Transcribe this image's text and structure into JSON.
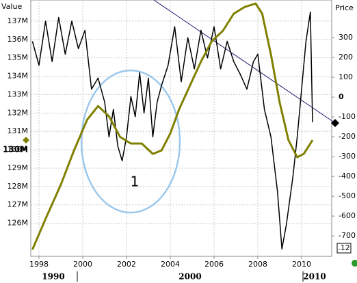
{
  "chart_data": {
    "type": "line",
    "y_axis_label": "Value",
    "y2_axis_label": "Price",
    "xlim": [
      1997.625,
      2011.375
    ],
    "xticks": [
      1998,
      2000,
      2002,
      2004,
      2006,
      2008,
      2010
    ],
    "ylim": [
      124200000,
      138150000
    ],
    "yticks": [
      {
        "value": 126000000,
        "label": "126M"
      },
      {
        "value": 127000000,
        "label": "127M"
      },
      {
        "value": 128000000,
        "label": "128M"
      },
      {
        "value": 129000000,
        "label": "129M"
      },
      {
        "value": 130000000,
        "label": "130M"
      },
      {
        "value": 131000000,
        "label": "131M"
      },
      {
        "value": 132000000,
        "label": "132M"
      },
      {
        "value": 133000000,
        "label": "133M"
      },
      {
        "value": 134000000,
        "label": "134M"
      },
      {
        "value": 135000000,
        "label": "135M"
      },
      {
        "value": 136000000,
        "label": "136M"
      },
      {
        "value": 137000000,
        "label": "137M"
      }
    ],
    "y2lim": [
      -803,
      490
    ],
    "y2ticks": [
      -700,
      -600,
      -500,
      -400,
      -300,
      -200,
      -100,
      0,
      100,
      200,
      300
    ],
    "grid": true,
    "series": [
      {
        "name": "Value",
        "color": "#000000",
        "x": [
          1997.7,
          1998.0,
          1998.3,
          1998.6,
          1998.9,
          1999.2,
          1999.5,
          1999.8,
          2000.1,
          2000.4,
          2000.7,
          2001.0,
          2001.2,
          2001.4,
          2001.6,
          2001.8,
          2002.0,
          2002.2,
          2002.4,
          2002.6,
          2002.8,
          2003.0,
          2003.2,
          2003.4,
          2003.6,
          2003.9,
          2004.2,
          2004.5,
          2004.8,
          2005.1,
          2005.4,
          2005.7,
          2006.0,
          2006.3,
          2006.6,
          2006.9,
          2007.2,
          2007.5,
          2007.8,
          2008.0,
          2008.3,
          2008.6,
          2008.9,
          2009.1,
          2009.3,
          2009.6,
          2009.8,
          2010.0,
          2010.2,
          2010.4,
          2010.5
        ],
        "values": [
          135900000,
          134600000,
          137000000,
          134800000,
          137200000,
          135200000,
          137000000,
          135500000,
          136500000,
          133300000,
          133900000,
          132600000,
          130700000,
          132200000,
          130200000,
          129400000,
          130700000,
          132900000,
          131800000,
          134200000,
          132000000,
          133900000,
          130700000,
          132600000,
          133500000,
          134600000,
          136700000,
          133700000,
          136100000,
          134400000,
          136500000,
          135000000,
          136700000,
          134400000,
          135900000,
          134800000,
          134100000,
          133300000,
          134800000,
          135200000,
          132200000,
          130700000,
          127700000,
          124600000,
          125900000,
          128500000,
          130700000,
          133300000,
          135900000,
          137500000,
          131500000
        ]
      },
      {
        "name": "Price",
        "color": "#808000",
        "axis": "y2",
        "x": [
          1997.7,
          1998.3,
          1999.0,
          1999.6,
          2000.2,
          2000.7,
          2001.2,
          2001.7,
          2002.2,
          2002.7,
          2003.2,
          2003.6,
          2004.0,
          2004.4,
          2004.9,
          2005.4,
          2005.9,
          2006.4,
          2006.9,
          2007.4,
          2007.9,
          2008.2,
          2008.6,
          2009.0,
          2009.4,
          2009.8,
          2010.1,
          2010.5
        ],
        "values": [
          -769,
          -614,
          -441,
          -269,
          -114,
          -45,
          -97,
          -200,
          -234,
          -234,
          -286,
          -269,
          -183,
          -62,
          59,
          179,
          283,
          334,
          421,
          455,
          472,
          421,
          214,
          -28,
          -217,
          -303,
          -286,
          -217
        ]
      }
    ],
    "marker_label": {
      "value": 130000000,
      "label": "130M"
    },
    "annotation": "1",
    "corner_label": ".12",
    "period_labels": [
      "1990",
      "2000",
      "2010"
    ]
  }
}
